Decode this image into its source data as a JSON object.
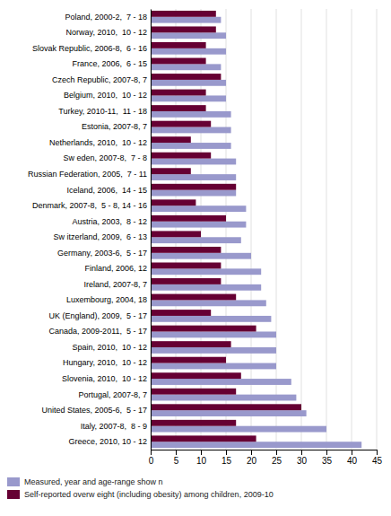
{
  "chart_data": {
    "type": "bar",
    "orientation": "horizontal",
    "categories": [
      "Poland, 2000-2,  7 - 18",
      "Norway, 2010,  10 - 12",
      "Slovak Republic, 2006-8,  6 - 16",
      "France, 2006,  6 - 15",
      "Czech Republic, 2007-8, 7",
      "Belgium, 2010,  10 - 12",
      "Turkey, 2010-11,  11 - 18",
      "Estonia, 2007-8, 7",
      "Netherlands, 2010,  10 - 12",
      "Sw eden, 2007-8,  7 - 8",
      "Russian Federation, 2005,  7 - 11",
      "Iceland, 2006,  14 - 15",
      "Denmark, 2007-8,  5 - 8, 14 - 16",
      "Austria, 2003,  8 - 12",
      "Sw itzerland, 2009,  6 - 13",
      "Germany, 2003-6,  5 - 17",
      "Finland, 2006, 12",
      "Ireland, 2007-8, 7",
      "Luxembourg, 2004, 18",
      "UK (England), 2009,  5 - 17",
      "Canada, 2009-2011,  5 - 17",
      "Spain, 2010,  10 - 12",
      "Hungary, 2010,  10 - 12",
      "Slovenia, 2010,  10 - 12",
      "Portugal, 2007-8, 7",
      "United States, 2005-6,  5 - 17",
      "Italy, 2007-8,  8 - 9",
      "Greece, 2010, 10 - 12"
    ],
    "series": [
      {
        "name": "Measured, year and age-range show n",
        "color": "#9999cc",
        "values": [
          14,
          15,
          15,
          14,
          15,
          15,
          16,
          16,
          16,
          17,
          17,
          17,
          19,
          19,
          18,
          20,
          22,
          22,
          23,
          24,
          25,
          25,
          25,
          28,
          29,
          31,
          35,
          42
        ]
      },
      {
        "name": "Self-reported overw eight (including obesity) among children, 2009-10",
        "color": "#660033",
        "values": [
          13,
          13,
          11,
          11,
          14,
          11,
          11,
          12,
          8,
          12,
          8,
          17,
          9,
          15,
          10,
          14,
          14,
          14,
          17,
          12,
          21,
          16,
          15,
          18,
          17,
          30,
          17,
          21
        ]
      }
    ],
    "xlim": [
      0,
      45
    ],
    "xticks": [
      0,
      5,
      10,
      15,
      20,
      25,
      30,
      35,
      40,
      45
    ],
    "grid": true,
    "legend": "lower left"
  }
}
